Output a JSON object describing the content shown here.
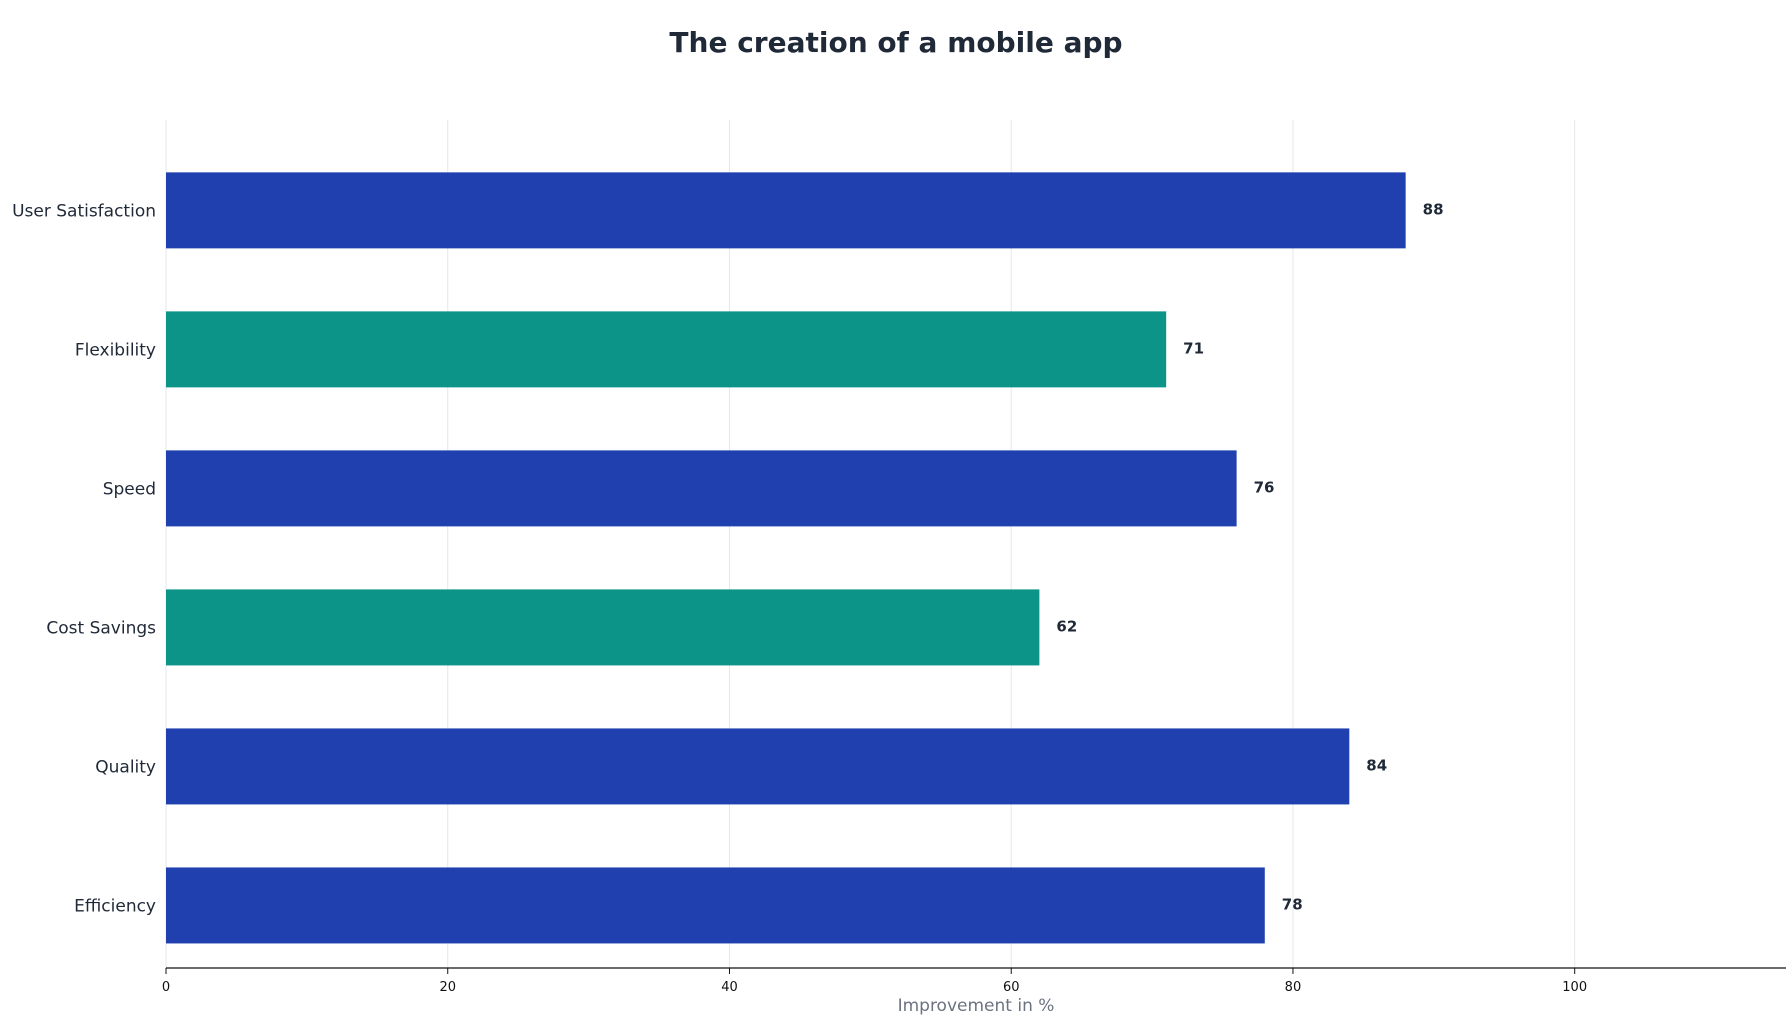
{
  "chart_data": {
    "type": "bar",
    "orientation": "horizontal",
    "title": "The creation of a mobile app",
    "xlabel": "Improvement in %",
    "ylabel": "",
    "categories": [
      "User Satisfaction",
      "Flexibility",
      "Speed",
      "Cost Savings",
      "Quality",
      "Efficiency"
    ],
    "values": [
      88,
      71,
      76,
      62,
      84,
      78
    ],
    "value_labels": [
      "88",
      "71",
      "76",
      "62",
      "84",
      "78"
    ],
    "bar_colors": [
      "#1f40ae",
      "#0d9488",
      "#1f40ae",
      "#0d9488",
      "#1f40ae",
      "#1f40ae"
    ],
    "xlim": [
      0,
      115
    ],
    "xticks": [
      0,
      20,
      40,
      60,
      80,
      100
    ],
    "xtick_labels": [
      "0",
      "20",
      "40",
      "60",
      "80",
      "100"
    ],
    "grid": "vertical",
    "legend": "none",
    "colors": {
      "primary": "#1f40ae",
      "accent": "#0d9488",
      "title": "#1f2937",
      "axis_label": "#6b7280",
      "grid": "#e5e7eb"
    }
  }
}
